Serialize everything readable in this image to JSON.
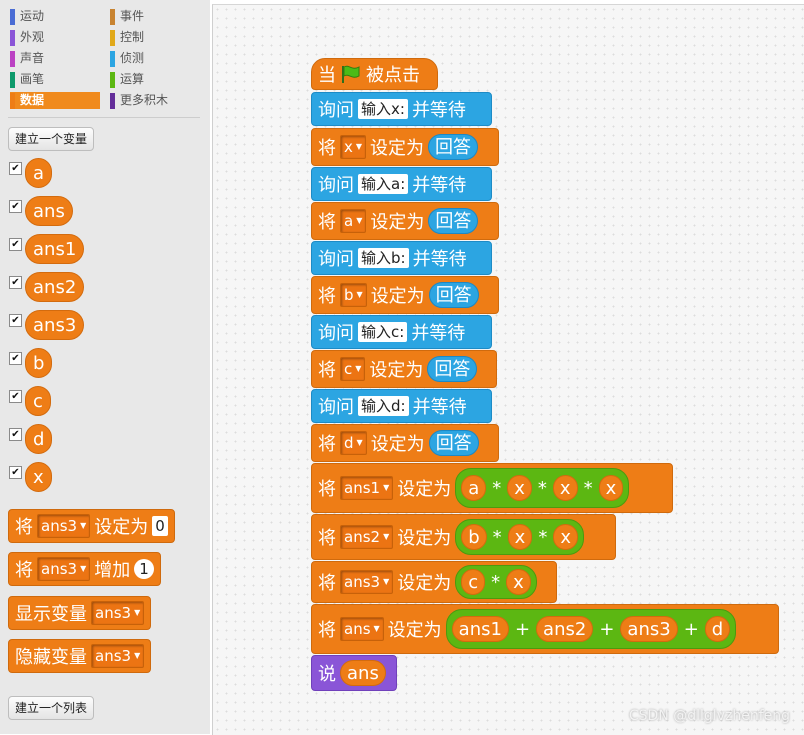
{
  "categories": [
    {
      "label": "运动",
      "color": "#4a6cd4"
    },
    {
      "label": "事件",
      "color": "#c88330"
    },
    {
      "label": "外观",
      "color": "#8a55d7"
    },
    {
      "label": "控制",
      "color": "#e1a91a"
    },
    {
      "label": "声音",
      "color": "#bb42c3"
    },
    {
      "label": "侦测",
      "color": "#2ca5e2"
    },
    {
      "label": "画笔",
      "color": "#0e9a6c"
    },
    {
      "label": "运算",
      "color": "#5cb712"
    },
    {
      "label": "数据",
      "color": "#ee7d16"
    },
    {
      "label": "更多积木",
      "color": "#632d99"
    }
  ],
  "palette": {
    "make_variable": "建立一个变量",
    "make_list": "建立一个列表",
    "variables": [
      "a",
      "ans",
      "ans1",
      "ans2",
      "ans3",
      "b",
      "c",
      "d",
      "x"
    ],
    "checkbox_mark": "✔",
    "set_block": {
      "prefix": "将",
      "var": "ans3",
      "mid": "设定为",
      "value": "0"
    },
    "change_block": {
      "prefix": "将",
      "var": "ans3",
      "mid": "增加",
      "value": "1"
    },
    "show_block": {
      "label": "显示变量",
      "var": "ans3"
    },
    "hide_block": {
      "label": "隐藏变量",
      "var": "ans3"
    }
  },
  "script": {
    "hat": {
      "before": "当",
      "after": "被点击"
    },
    "ask_prefix": "询问",
    "ask_suffix": "并等待",
    "set_prefix": "将",
    "set_mid": "设定为",
    "answer": "回答",
    "asks": [
      "输入x:",
      "输入a:",
      "输入b:",
      "输入c:",
      "输入d:"
    ],
    "set_vars": [
      "x",
      "a",
      "b",
      "c",
      "d"
    ],
    "ans1": {
      "var": "ans1",
      "a": "a",
      "op": "*",
      "x": "x"
    },
    "ans2": {
      "var": "ans2",
      "b": "b",
      "op": "*",
      "x": "x"
    },
    "ans3": {
      "var": "ans3",
      "c": "c",
      "op": "*",
      "x": "x"
    },
    "ans": {
      "var": "ans",
      "t1": "ans1",
      "t2": "ans2",
      "t3": "ans3",
      "t4": "d",
      "op": "+"
    },
    "say": {
      "label": "说",
      "value": "ans"
    }
  },
  "watermark": "CSDN @dllglvzhenfeng"
}
